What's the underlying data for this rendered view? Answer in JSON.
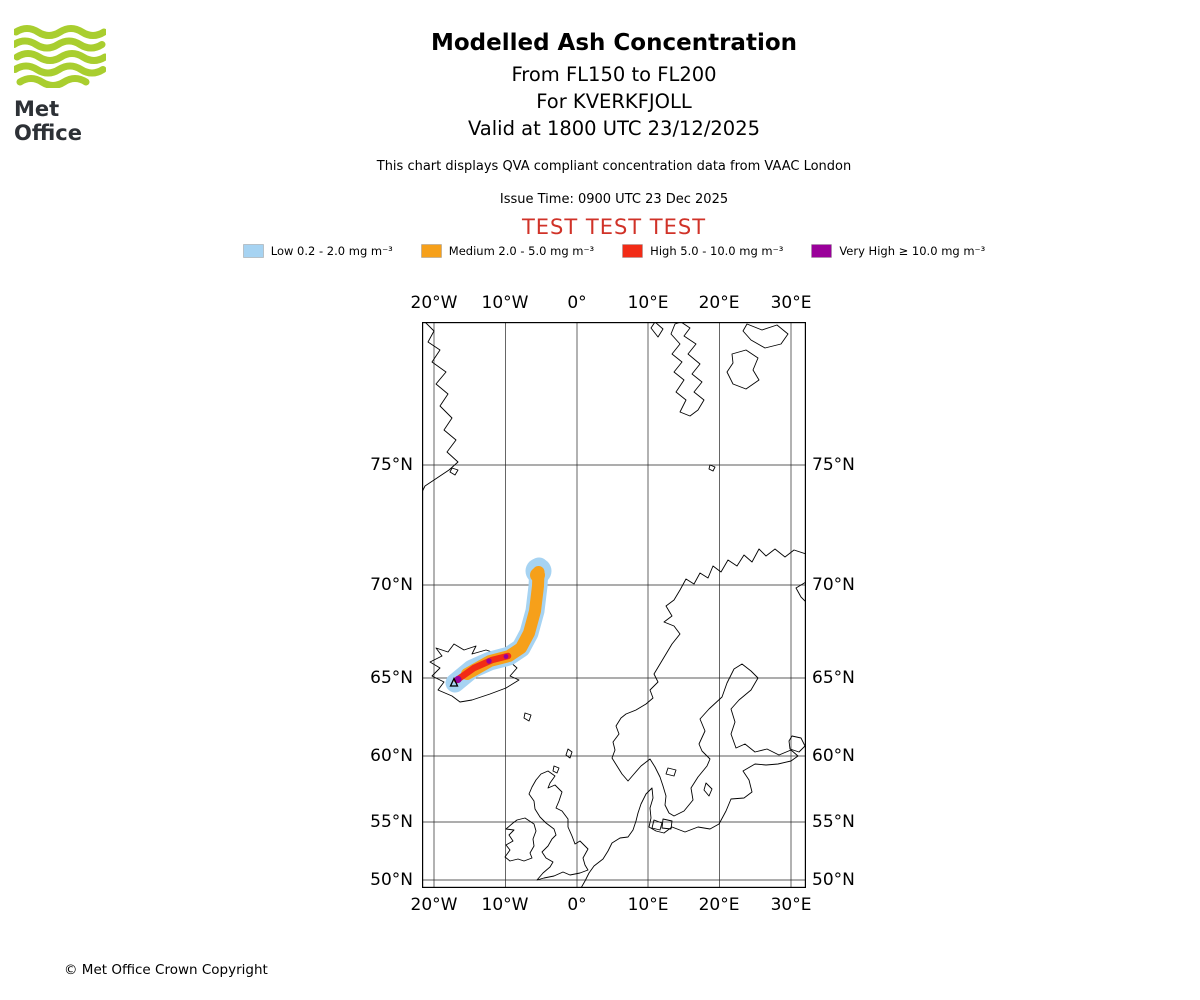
{
  "logo": {
    "brand": "Met Office",
    "green": "#a9ce2f"
  },
  "titles": {
    "main": "Modelled Ash Concentration",
    "line2": "From FL150 to FL200",
    "line3": "For KVERKFJOLL",
    "line4": "Valid at 1800 UTC 23/12/2025"
  },
  "notes": {
    "description": "This chart displays QVA compliant concentration data from VAAC London",
    "issue_time": "Issue Time: 0900 UTC 23 Dec 2025",
    "test_banner": "TEST TEST TEST",
    "test_color": "#d03228"
  },
  "legend": {
    "items": [
      {
        "name": "low",
        "label": "Low 0.2 - 2.0 mg m⁻³",
        "color": "#a6d3f2"
      },
      {
        "name": "medium",
        "label": "Medium 2.0 - 5.0 mg m⁻³",
        "color": "#f6a01a"
      },
      {
        "name": "high",
        "label": "High 5.0 - 10.0 mg m⁻³",
        "color": "#f22b16"
      },
      {
        "name": "very_high",
        "label": "Very High ≥ 10.0 mg m⁻³",
        "color": "#9a009a"
      }
    ]
  },
  "map": {
    "lon_labels": [
      "20°W",
      "10°W",
      "0°",
      "10°E",
      "20°E",
      "30°E"
    ],
    "lat_labels": [
      "75°N",
      "70°N",
      "65°N",
      "60°N",
      "55°N",
      "50°N"
    ]
  },
  "footer": {
    "copyright": "© Met Office Crown Copyright"
  }
}
